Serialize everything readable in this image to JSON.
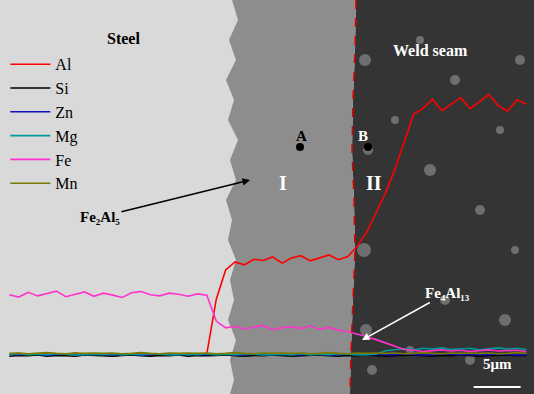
{
  "chart_data": {
    "type": "line",
    "x": [
      1,
      2,
      3,
      4,
      5,
      6,
      7,
      8,
      9,
      10,
      11,
      12,
      13,
      14,
      15,
      16,
      17,
      18,
      19,
      20,
      21,
      22,
      23,
      24,
      25,
      26,
      27,
      28,
      29,
      30,
      31,
      32,
      33,
      34,
      35,
      36,
      37,
      38,
      39,
      40,
      41,
      42,
      43,
      44,
      45,
      46,
      47,
      48,
      49,
      50,
      51,
      52,
      53,
      54,
      55,
      56
    ],
    "xlim": [
      0,
      56.8
    ],
    "ylim": [
      0,
      100
    ],
    "tick_labels": false,
    "grid": false,
    "legend": "top left",
    "series": [
      {
        "name": "Al",
        "color": "#ff0000",
        "values": [
          10,
          10.3,
          9.8,
          10.1,
          10.2,
          9.9,
          10,
          10.4,
          9.8,
          10.1,
          10,
          10.2,
          9.9,
          10.1,
          10.3,
          9.8,
          10,
          10.2,
          9.9,
          10.1,
          10,
          10.2,
          24,
          31.5,
          33.5,
          32.8,
          34.2,
          33.9,
          34.8,
          33.2,
          34.5,
          35.1,
          33.8,
          34.6,
          35.3,
          34.1,
          34.9,
          37.5,
          41,
          46,
          51,
          57,
          64,
          71,
          72.5,
          74.8,
          71.9,
          73.6,
          75.2,
          72.4,
          74.1,
          76,
          73.2,
          71.8,
          74.7,
          73.5
        ]
      },
      {
        "name": "Si",
        "color": "#000000",
        "values": [
          9.6,
          9.8,
          9.7,
          9.9,
          9.6,
          9.8,
          9.7,
          9.6,
          9.9,
          9.8,
          9.7,
          9.6,
          9.8,
          9.9,
          9.7,
          9.6,
          9.8,
          9.7,
          9.9,
          9.6,
          9.8,
          9.7,
          9.8,
          9.9,
          9.7,
          9.6,
          9.8,
          9.7,
          9.9,
          9.8,
          9.6,
          9.7,
          9.8,
          9.9,
          9.7,
          9.6,
          9.8,
          9.7,
          9.9,
          9.8,
          9.6,
          9.7,
          9.8,
          9.9,
          9.7,
          9.6,
          9.8,
          9.7,
          9.9,
          9.8,
          9.6,
          9.7,
          9.8,
          9.9,
          9.7,
          9.8
        ]
      },
      {
        "name": "Zn",
        "color": "#1010c0",
        "values": [
          10.1,
          10,
          10.2,
          10.1,
          9.9,
          10,
          10.2,
          10.1,
          10,
          10.1,
          10.1,
          10,
          10.2,
          10.1,
          9.9,
          10,
          10.2,
          10.1,
          10,
          10.1,
          10.1,
          10,
          10.2,
          10.1,
          9.9,
          10,
          10.2,
          10.1,
          10,
          10.1,
          10.1,
          10,
          10.2,
          10.1,
          9.9,
          10,
          10.2,
          10.1,
          10,
          10.1,
          10.1,
          10,
          10.2,
          10.1,
          9.9,
          10,
          10.2,
          10.1,
          10,
          10.1,
          10.1,
          10,
          10.2,
          10.1,
          9.9,
          10
        ]
      },
      {
        "name": "Mg",
        "color": "#009999",
        "values": [
          10,
          10.2,
          9.9,
          10.1,
          10,
          10.2,
          10.1,
          9.9,
          10,
          10.1,
          10,
          10.2,
          9.9,
          10.1,
          10,
          10.2,
          10.1,
          9.9,
          10,
          10.1,
          10,
          10.2,
          9.9,
          10.1,
          10,
          10.2,
          10.1,
          9.9,
          10,
          10.1,
          10,
          10.2,
          9.9,
          10.1,
          10,
          10.2,
          10.1,
          9.9,
          10,
          10.1,
          11,
          11.3,
          11.5,
          11.2,
          11.6,
          11.4,
          11.7,
          11.3,
          11.5,
          11.6,
          11.2,
          11.5,
          11.7,
          11.4,
          11.6,
          11.3
        ]
      },
      {
        "name": "Fe",
        "color": "#ff33cc",
        "values": [
          25.2,
          24.6,
          25.8,
          24.9,
          25.5,
          26.1,
          24.7,
          25.3,
          25.9,
          24.8,
          25.6,
          25.1,
          24.5,
          25.7,
          26,
          25.2,
          24.9,
          25.6,
          25.3,
          24.8,
          25.4,
          25.1,
          18.5,
          16.8,
          17.2,
          16.5,
          16.9,
          17.4,
          16.3,
          16.8,
          17.1,
          16.6,
          17.3,
          16.4,
          16.9,
          16.2,
          15.8,
          15.2,
          14.6,
          13.8,
          12.9,
          12.1,
          11.3,
          11.1,
          10.8,
          11,
          11.2,
          10.9,
          11.1,
          10.8,
          11,
          11.2,
          10.9,
          11,
          11.1,
          10.8
        ]
      },
      {
        "name": "Mn",
        "color": "#7a7a00",
        "values": [
          10.3,
          10.4,
          10.2,
          10.3,
          10.5,
          10.3,
          10.2,
          10.4,
          10.3,
          10.4,
          10.3,
          10.4,
          10.2,
          10.3,
          10.5,
          10.3,
          10.2,
          10.4,
          10.3,
          10.4,
          10.3,
          10.4,
          10.2,
          10.3,
          10.5,
          10.3,
          10.2,
          10.4,
          10.3,
          10.4,
          10.3,
          10.4,
          10.2,
          10.3,
          10.5,
          10.3,
          10.2,
          10.4,
          10.3,
          10.4,
          10.3,
          10.4,
          10.2,
          10.3,
          10.5,
          10.3,
          10.2,
          10.4,
          10.3,
          10.4,
          10.3,
          10.4,
          10.2,
          10.3,
          10.5,
          10.3
        ]
      }
    ],
    "annotations": [
      "Steel",
      "Weld seam",
      "A",
      "B",
      "I",
      "II",
      "Fe₂Al₅",
      "Fe₄Al₁₃"
    ],
    "scale_bar": {
      "length": 5,
      "label": "5μm"
    }
  }
}
